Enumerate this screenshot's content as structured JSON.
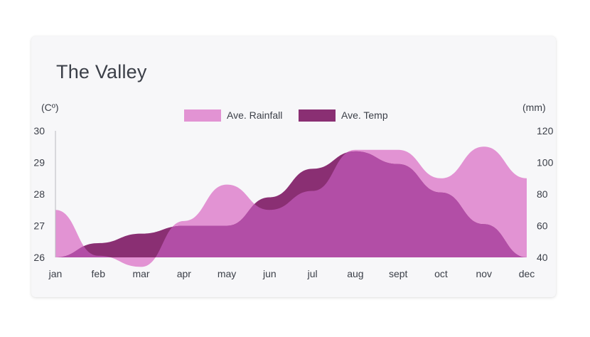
{
  "page": {
    "title": "The Valley"
  },
  "chart_data": {
    "type": "area",
    "title": "The Valley",
    "categories": [
      "jan",
      "feb",
      "mar",
      "apr",
      "may",
      "jun",
      "jul",
      "aug",
      "sept",
      "oct",
      "nov",
      "dec"
    ],
    "y_left": {
      "label": "(Cº)",
      "range": [
        26,
        30
      ],
      "ticks": [
        30,
        29,
        28,
        27,
        26
      ]
    },
    "y_right": {
      "label": "(mm)",
      "range": [
        40,
        120
      ],
      "ticks": [
        120,
        100,
        80,
        60,
        40
      ]
    },
    "legend_position": "top",
    "grid": false,
    "series": [
      {
        "name": "Ave. Rainfall",
        "axis": "right",
        "color": "#e293d3",
        "values": [
          70,
          41,
          34,
          63,
          86,
          70,
          82,
          108,
          108,
          90,
          110,
          90
        ]
      },
      {
        "name": "Ave. Temp",
        "axis": "left",
        "color": "#8a2f73",
        "values": [
          26.0,
          26.45,
          26.75,
          27.0,
          27.0,
          27.9,
          28.8,
          29.35,
          28.95,
          28.05,
          27.05,
          26.0
        ]
      }
    ],
    "overlap_color": "#b24ea6"
  }
}
